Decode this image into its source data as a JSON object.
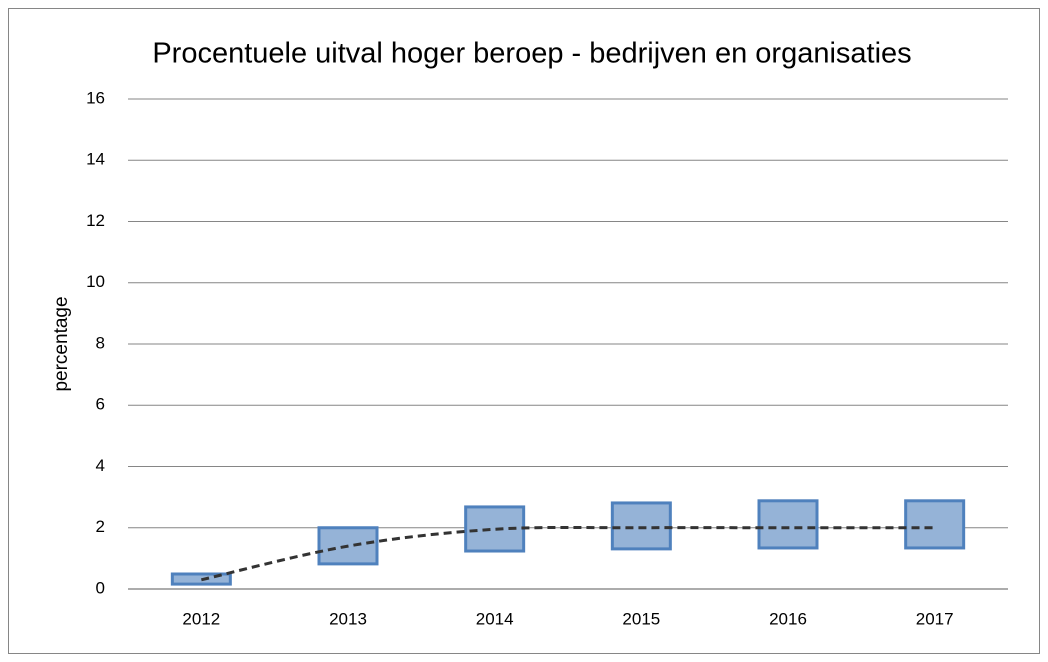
{
  "chart_data": {
    "type": "range",
    "title": "Procentuele uitval hoger beroep - bedrijven en organisaties",
    "y_label": "percentage",
    "categories": [
      "2012",
      "2013",
      "2014",
      "2015",
      "2016",
      "2017"
    ],
    "low": [
      0.16,
      0.82,
      1.24,
      1.31,
      1.34,
      1.34
    ],
    "high": [
      0.49,
      2.0,
      2.68,
      2.81,
      2.88,
      2.88
    ],
    "values": [
      0.3,
      1.4,
      1.95,
      2.0,
      2.0,
      2.0
    ],
    "box_color": "#95b3d7",
    "box_edge_color": "#4f81bd",
    "line_color": "#333333",
    "line_style": "dashed",
    "ylim": [
      0,
      16
    ],
    "yticks": [
      0,
      2,
      4,
      6,
      8,
      10,
      12,
      14,
      16
    ],
    "grid": true
  }
}
